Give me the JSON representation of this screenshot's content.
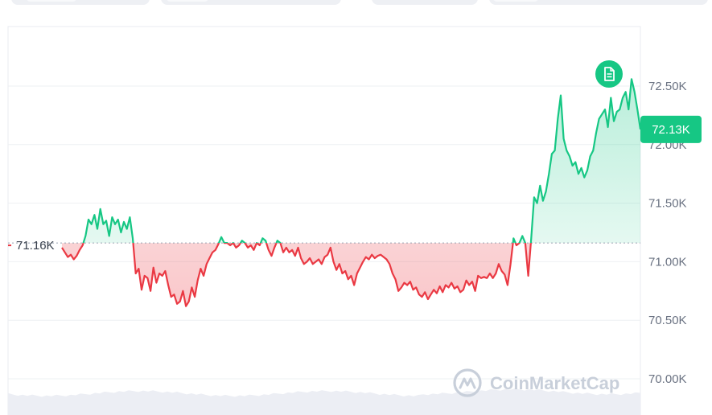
{
  "tabs": [
    {
      "name": "range-tab-1"
    },
    {
      "name": "range-tab-2"
    },
    {
      "name": "range-tab-3"
    },
    {
      "name": "range-tab-4"
    }
  ],
  "watermark": {
    "text": "CoinMarketCap",
    "icon": "coinmarketcap-logo-icon"
  },
  "note_icon": "document-note-icon",
  "colors": {
    "up": "#16c784",
    "down": "#ea3943",
    "up_fill": "#16c784",
    "down_fill": "#ea3943",
    "grid": "#eef0f3",
    "ref": "#9aa3b2"
  },
  "chart_data": {
    "type": "line",
    "reference": {
      "value": 71.16,
      "label": "71.16K"
    },
    "current": {
      "value": 72.13,
      "label": "72.13K"
    },
    "ylim": [
      69.8,
      72.85
    ],
    "yticks": [
      {
        "value": 72.5,
        "label": "72.50K"
      },
      {
        "value": 72.0,
        "label": "72.00K"
      },
      {
        "value": 71.5,
        "label": "71.50K"
      },
      {
        "value": 71.0,
        "label": "71.00K"
      },
      {
        "value": 70.5,
        "label": "70.50K"
      },
      {
        "value": 70.0,
        "label": "70.00K"
      }
    ],
    "grid": true,
    "series": [
      {
        "values": [
          71.12,
          71.08,
          71.04,
          71.06,
          71.02,
          71.05,
          71.1,
          71.14,
          71.22,
          71.36,
          71.32,
          71.4,
          71.28,
          71.45,
          71.32,
          71.35,
          71.22,
          71.38,
          71.32,
          71.36,
          71.25,
          71.34,
          71.28,
          71.38,
          71.2,
          70.9,
          70.94,
          70.76,
          70.88,
          70.86,
          70.75,
          70.95,
          70.82,
          70.9,
          70.88,
          70.92,
          70.8,
          70.7,
          70.72,
          70.64,
          70.66,
          70.75,
          70.62,
          70.66,
          70.78,
          70.7,
          70.84,
          70.94,
          70.88,
          70.98,
          71.03,
          71.08,
          71.1,
          71.15,
          71.21,
          71.16,
          71.16,
          71.14,
          71.16,
          71.12,
          71.14,
          71.18,
          71.16,
          71.12,
          71.14,
          71.1,
          71.16,
          71.14,
          71.2,
          71.18,
          71.1,
          71.05,
          71.12,
          71.18,
          71.16,
          71.08,
          71.12,
          71.08,
          71.1,
          71.05,
          71.12,
          71.03,
          70.98,
          71.0,
          71.03,
          70.98,
          71.0,
          71.02,
          70.98,
          71.04,
          71.06,
          71.12,
          71.0,
          70.93,
          70.98,
          70.9,
          70.92,
          70.85,
          70.88,
          70.8,
          70.9,
          70.95,
          71.0,
          71.04,
          71.02,
          71.06,
          71.03,
          71.05,
          71.06,
          71.04,
          71.02,
          70.98,
          70.9,
          70.85,
          70.75,
          70.78,
          70.82,
          70.8,
          70.83,
          70.76,
          70.78,
          70.72,
          70.7,
          70.74,
          70.68,
          70.72,
          70.76,
          70.73,
          70.79,
          70.74,
          70.8,
          70.78,
          70.82,
          70.77,
          70.79,
          70.74,
          70.76,
          70.84,
          70.8,
          70.83,
          70.75,
          70.88,
          70.86,
          70.87,
          70.86,
          70.9,
          70.86,
          70.9,
          70.98,
          70.92,
          70.89,
          70.8,
          70.98,
          71.2,
          71.14,
          71.16,
          71.22,
          71.16,
          70.88,
          71.2,
          71.55,
          71.5,
          71.65,
          71.52,
          71.6,
          71.75,
          71.92,
          71.95,
          72.22,
          72.42,
          72.05,
          71.95,
          71.9,
          71.82,
          71.85,
          71.75,
          71.8,
          71.72,
          71.78,
          71.9,
          71.95,
          72.1,
          72.22,
          72.26,
          72.3,
          72.15,
          72.4,
          72.2,
          72.28,
          72.3,
          72.4,
          72.45,
          72.3,
          72.56,
          72.45,
          72.3,
          72.13
        ]
      }
    ]
  }
}
